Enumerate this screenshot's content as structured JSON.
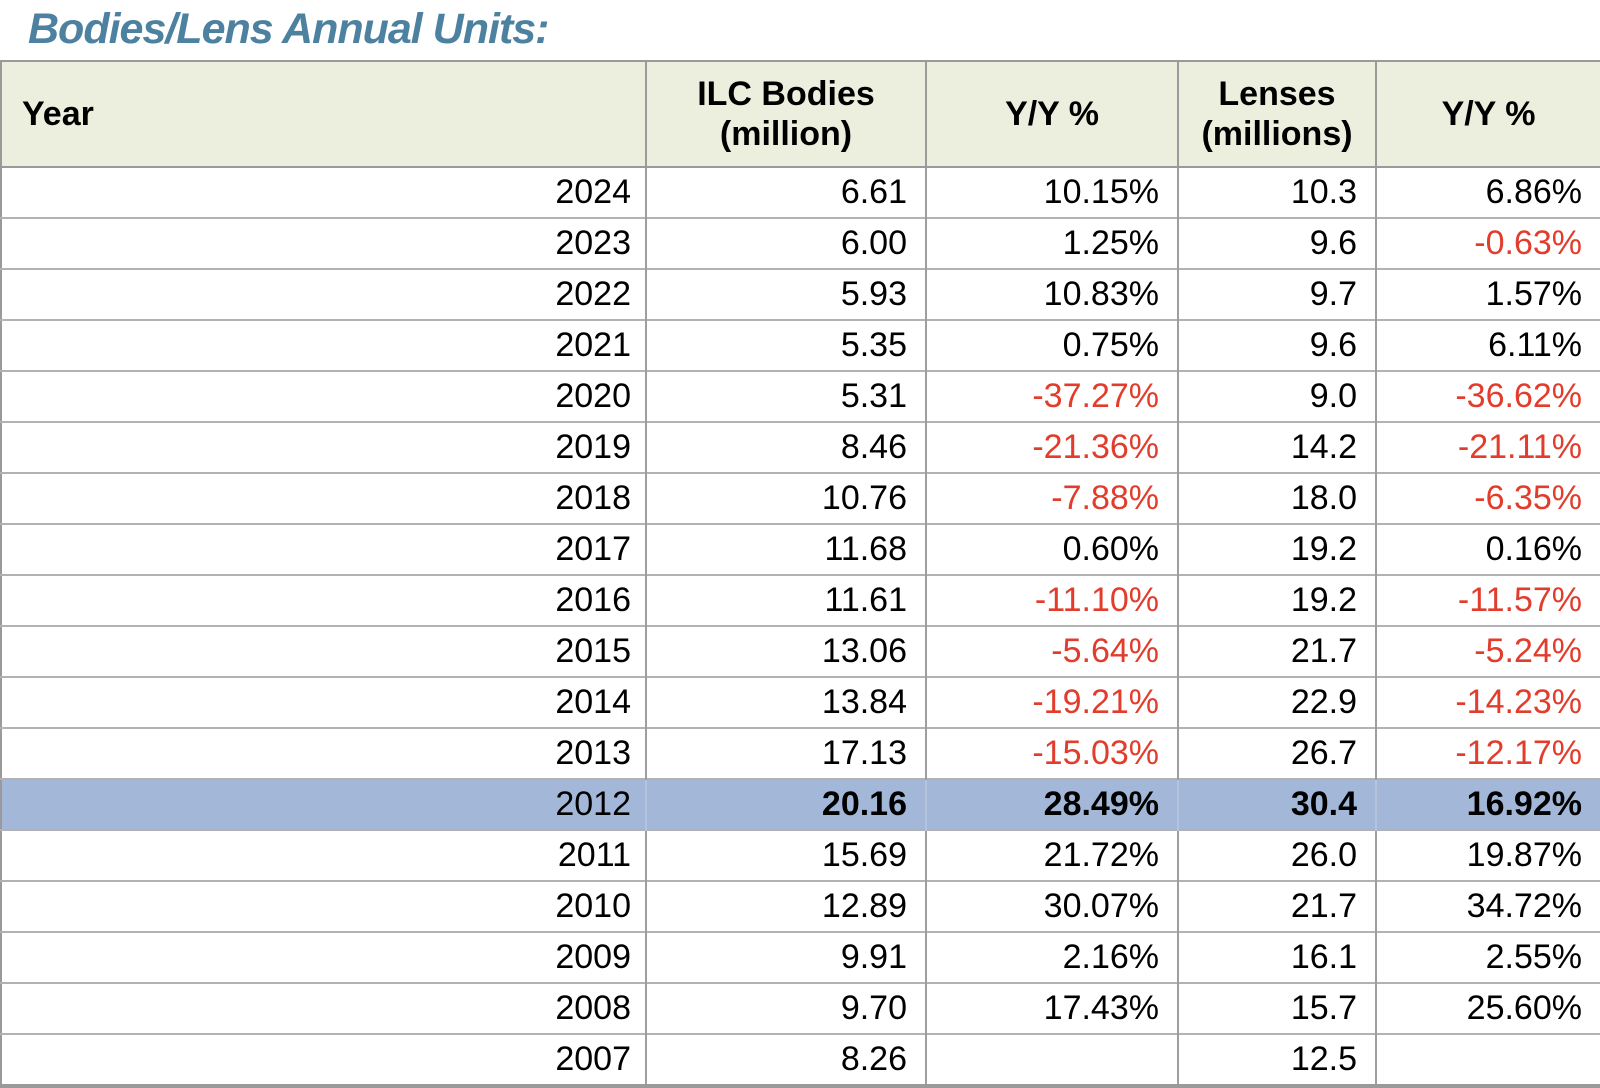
{
  "title": "Bodies/Lens Annual Units:",
  "colors": {
    "title_text": "#4d81a0",
    "header_bg": "#ecefde",
    "highlight_row_bg": "#a3b8d8",
    "negative_text": "#e23d2c",
    "table_border": "#9a9a9a"
  },
  "chart_data": {
    "type": "table",
    "title": "Bodies/Lens Annual Units:",
    "columns": [
      "Year",
      "ILC Bodies\n(million)",
      "Y/Y %",
      "Lenses\n(millions)",
      "Y/Y %"
    ],
    "rows": [
      {
        "cells": [
          "2024",
          "6.61",
          "10.15%",
          "10.3",
          "6.86%"
        ],
        "highlight": false
      },
      {
        "cells": [
          "2023",
          "6.00",
          "1.25%",
          "9.6",
          "-0.63%"
        ],
        "highlight": false
      },
      {
        "cells": [
          "2022",
          "5.93",
          "10.83%",
          "9.7",
          "1.57%"
        ],
        "highlight": false
      },
      {
        "cells": [
          "2021",
          "5.35",
          "0.75%",
          "9.6",
          "6.11%"
        ],
        "highlight": false
      },
      {
        "cells": [
          "2020",
          "5.31",
          "-37.27%",
          "9.0",
          "-36.62%"
        ],
        "highlight": false
      },
      {
        "cells": [
          "2019",
          "8.46",
          "-21.36%",
          "14.2",
          "-21.11%"
        ],
        "highlight": false
      },
      {
        "cells": [
          "2018",
          "10.76",
          "-7.88%",
          "18.0",
          "-6.35%"
        ],
        "highlight": false
      },
      {
        "cells": [
          "2017",
          "11.68",
          "0.60%",
          "19.2",
          "0.16%"
        ],
        "highlight": false
      },
      {
        "cells": [
          "2016",
          "11.61",
          "-11.10%",
          "19.2",
          "-11.57%"
        ],
        "highlight": false
      },
      {
        "cells": [
          "2015",
          "13.06",
          "-5.64%",
          "21.7",
          "-5.24%"
        ],
        "highlight": false
      },
      {
        "cells": [
          "2014",
          "13.84",
          "-19.21%",
          "22.9",
          "-14.23%"
        ],
        "highlight": false
      },
      {
        "cells": [
          "2013",
          "17.13",
          "-15.03%",
          "26.7",
          "-12.17%"
        ],
        "highlight": false
      },
      {
        "cells": [
          "2012",
          "20.16",
          "28.49%",
          "30.4",
          "16.92%"
        ],
        "highlight": true
      },
      {
        "cells": [
          "2011",
          "15.69",
          "21.72%",
          "26.0",
          "19.87%"
        ],
        "highlight": false
      },
      {
        "cells": [
          "2010",
          "12.89",
          "30.07%",
          "21.7",
          "34.72%"
        ],
        "highlight": false
      },
      {
        "cells": [
          "2009",
          "9.91",
          "2.16%",
          "16.1",
          "2.55%"
        ],
        "highlight": false
      },
      {
        "cells": [
          "2008",
          "9.70",
          "17.43%",
          "15.7",
          "25.60%"
        ],
        "highlight": false
      },
      {
        "cells": [
          "2007",
          "8.26",
          "",
          "12.5",
          ""
        ],
        "highlight": false
      }
    ]
  }
}
